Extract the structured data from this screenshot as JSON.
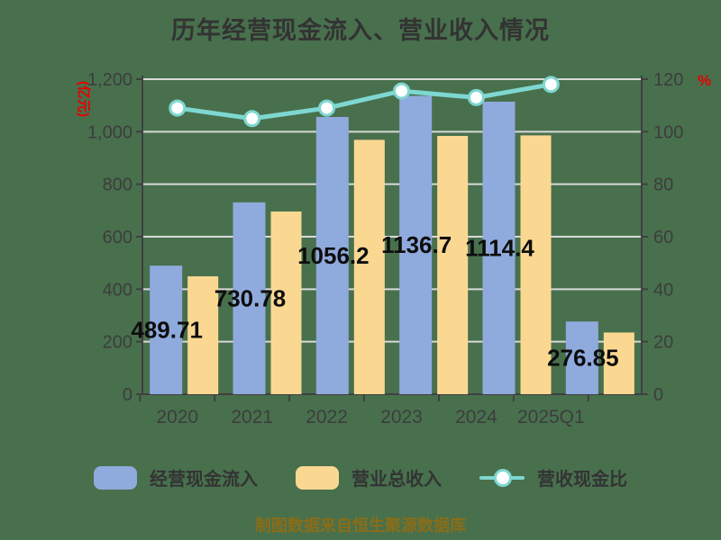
{
  "title": "历年经营现金流入、营业收入情况",
  "caption": "制图数据来自恒生聚源数据库",
  "left_axis": {
    "unit": "(亿元)",
    "ticks": [
      "0",
      "200",
      "400",
      "600",
      "800",
      "1,000",
      "1,200"
    ],
    "tick_values": [
      0,
      200,
      400,
      600,
      800,
      1000,
      1200
    ],
    "min": 0,
    "max": 1200
  },
  "right_axis": {
    "unit": "%",
    "ticks": [
      "0",
      "20",
      "40",
      "60",
      "80",
      "100",
      "120"
    ],
    "tick_values": [
      0,
      20,
      40,
      60,
      80,
      100,
      120
    ],
    "min": 0,
    "max": 120
  },
  "chart_data": {
    "type": "bar",
    "subtype": "grouped bars with overlay line",
    "title": "历年经营现金流入、营业收入情况",
    "categories": [
      "2020",
      "2021",
      "2022",
      "2023",
      "2024",
      "2025Q1"
    ],
    "series": [
      {
        "name": "经营现金流入",
        "type": "bar",
        "axis": "left",
        "color": "#8FAADC",
        "values": [
          489.71,
          730.78,
          1056.2,
          1136.7,
          1114.4,
          276.85
        ],
        "labels": [
          "489.71",
          "730.78",
          "1056.2",
          "1136.7",
          "1114.4",
          "276.85"
        ]
      },
      {
        "name": "营业总收入",
        "type": "bar",
        "axis": "left",
        "color": "#FBD892",
        "values": [
          449,
          696,
          969,
          984,
          986,
          235
        ],
        "values_note": "estimated from bar heights; not labeled in chart"
      },
      {
        "name": "营收现金比",
        "type": "line",
        "axis": "right",
        "color": "#7ED7D1",
        "values": [
          109,
          105,
          109,
          115.5,
          113,
          118
        ],
        "values_note": "estimated from right axis; not labeled in chart"
      }
    ],
    "ylim_left": [
      0,
      1200
    ],
    "ylim_right": [
      0,
      120
    ],
    "grid": true,
    "legend_position": "bottom"
  },
  "legend": {
    "items": [
      {
        "label": "经营现金流入",
        "color": "#8FAADC",
        "marker": "bar"
      },
      {
        "label": "营业总收入",
        "color": "#FBD892",
        "marker": "bar"
      },
      {
        "label": "营收现金比",
        "color": "#7ED7D1",
        "marker": "line-circle"
      }
    ]
  },
  "colors": {
    "background": "#48704D",
    "bar_blue": "#8FAADC",
    "bar_yellow": "#FBD892",
    "line_teal": "#7ED7D1",
    "marker_fill": "#FFFFFF",
    "grid": "#D9D9D9",
    "axis": "#404040",
    "tick_text": "#3D3D3D",
    "title_text": "#333333",
    "accent_red": "#E60000",
    "caption_gold": "#8A6D18",
    "data_label": "#0D0D0D"
  }
}
